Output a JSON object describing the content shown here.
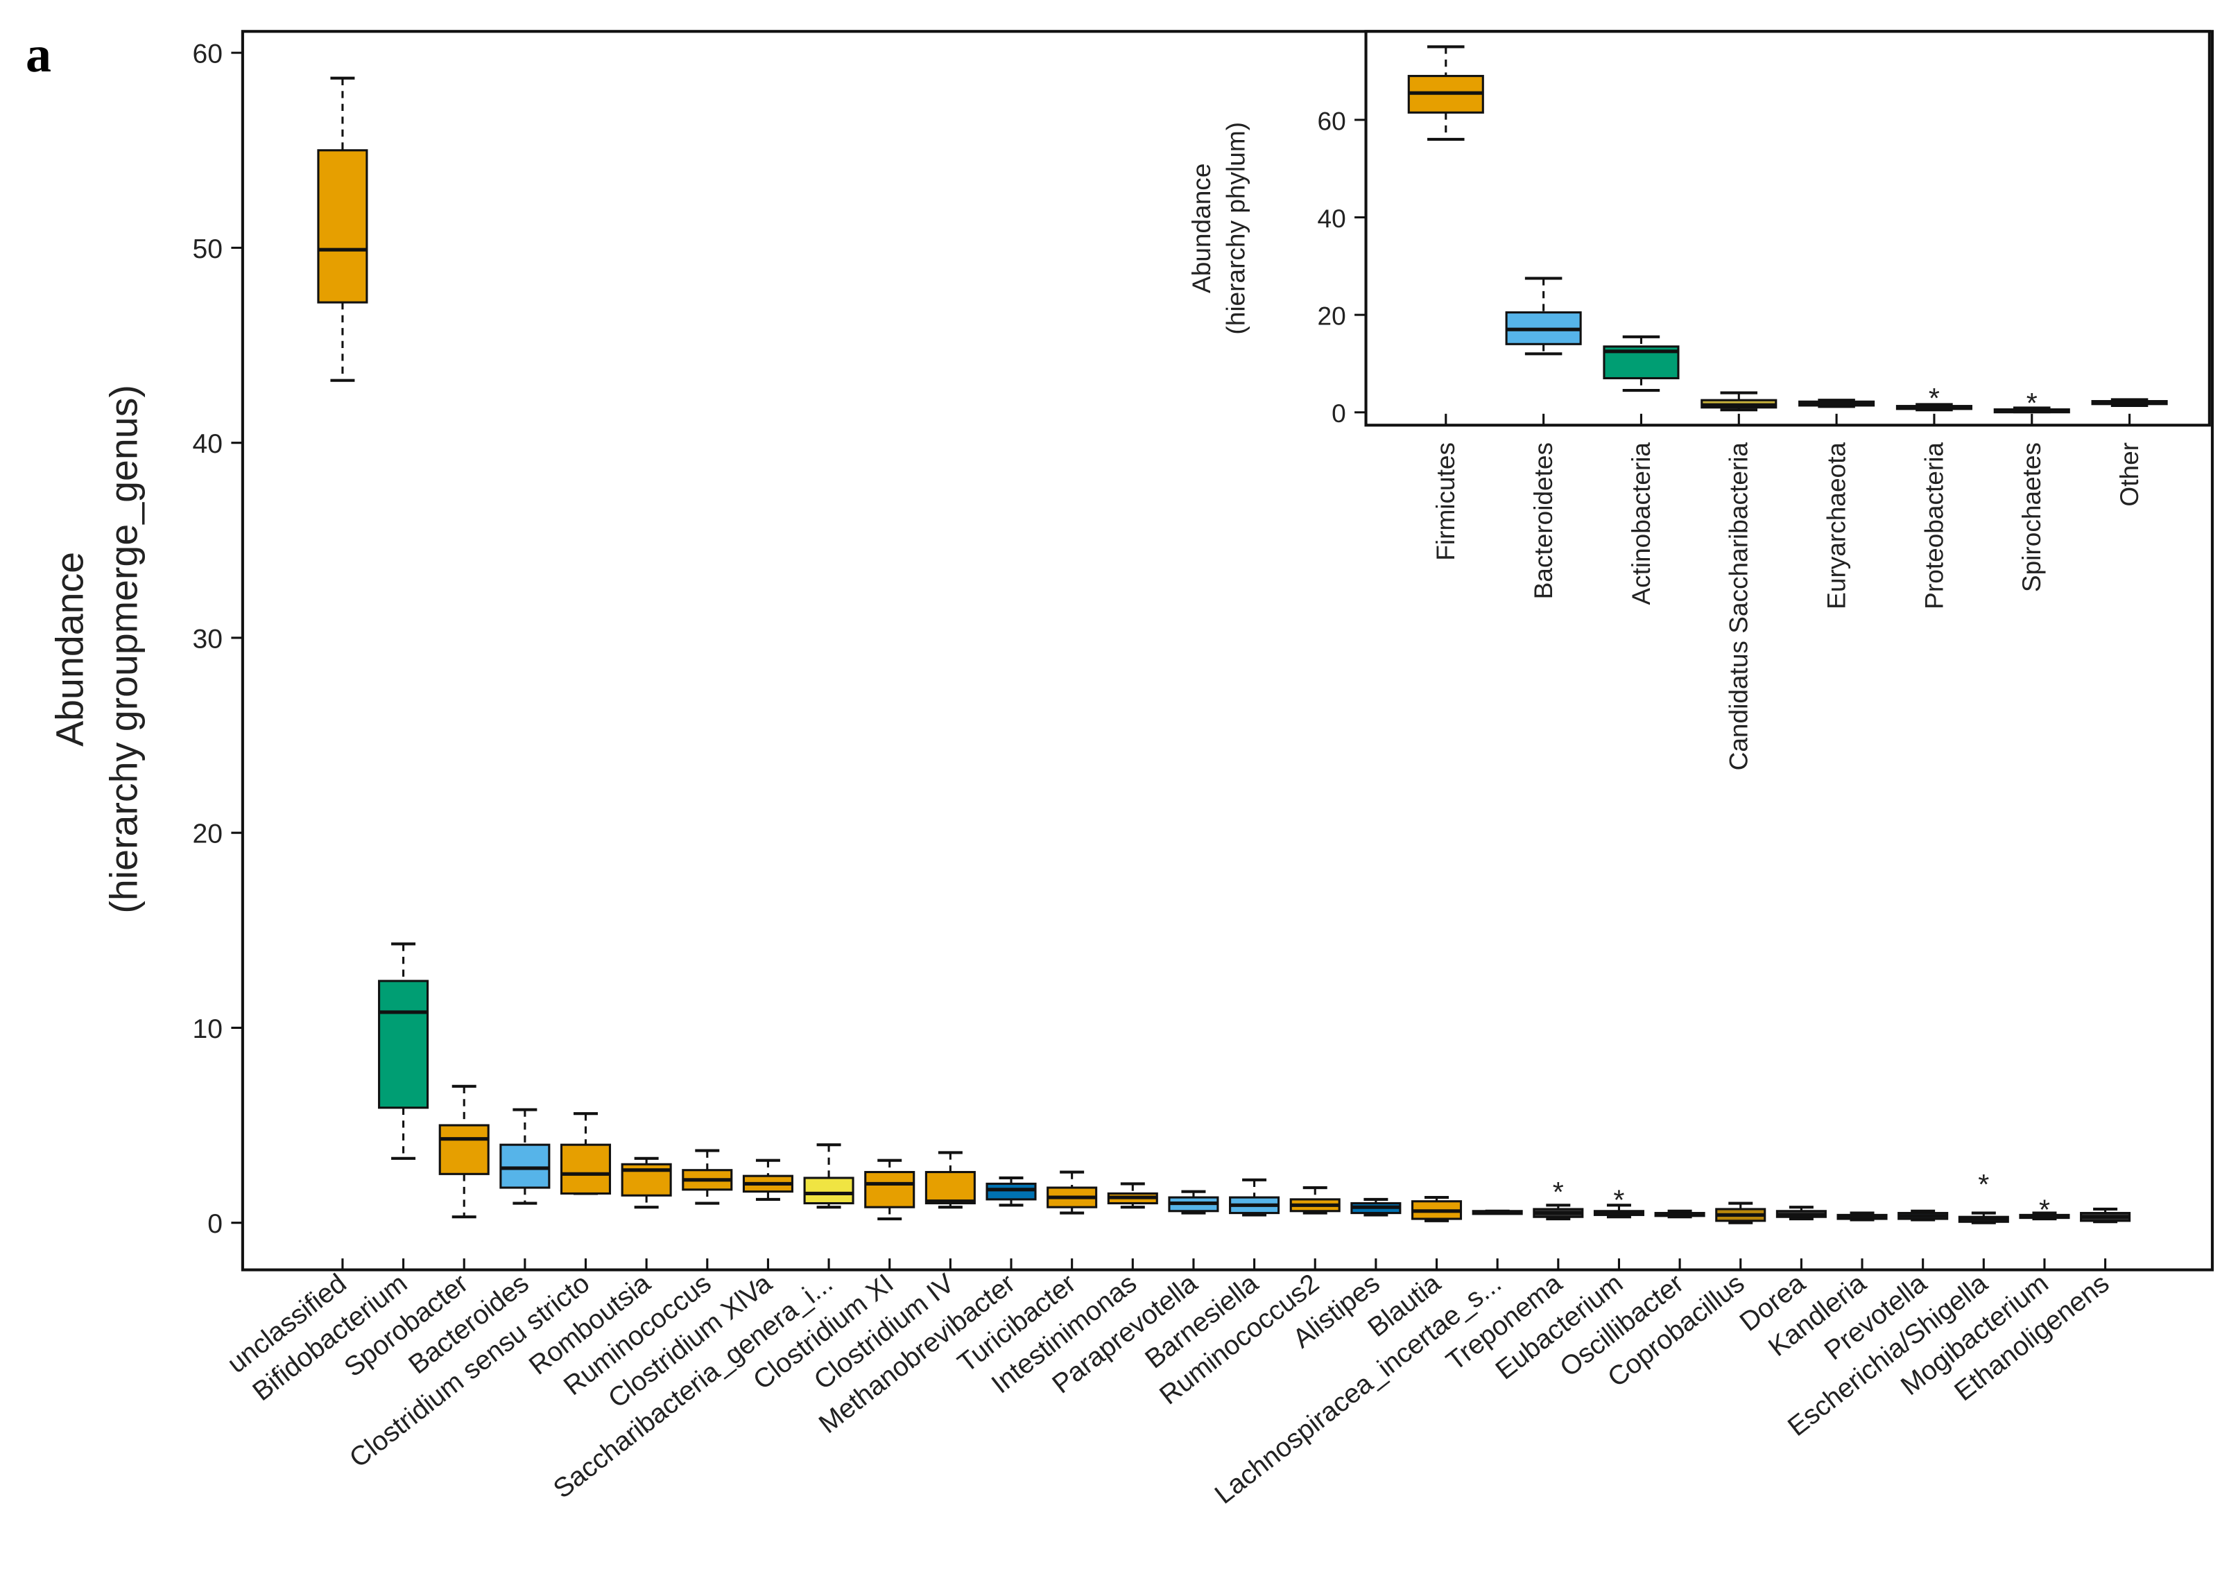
{
  "chart_data": [
    {
      "type": "box",
      "panel_label": "a",
      "ylabel": [
        "Abundance",
        "(hierarchy groupmerge_genus)"
      ],
      "ylim": [
        0,
        60
      ],
      "yticks": [
        0,
        10,
        20,
        30,
        40,
        50,
        60
      ],
      "categories": [
        "unclassified",
        "Bifidobacterium",
        "Sporobacter",
        "Bacteroides",
        "Clostridium sensu stricto",
        "Romboutsia",
        "Ruminococcus",
        "Clostridium XlVa",
        "Saccharibacteria_genera_i...",
        "Clostridium XI",
        "Clostridium IV",
        "Methanobrevibacter",
        "Turicibacter",
        "Intestinimonas",
        "Paraprevotella",
        "Barnesiella",
        "Ruminococcus2",
        "Alistipes",
        "Blautia",
        "Lachnospiracea_incertae_s...",
        "Treponema",
        "Eubacterium",
        "Oscillibacter",
        "Coprobacillus",
        "Dorea",
        "Kandleria",
        "Prevotella",
        "Escherichia/Shigella",
        "Mogibacterium",
        "Ethanoligenens"
      ],
      "boxes": [
        [
          43.2,
          47.2,
          49.9,
          55.0,
          58.7
        ],
        [
          3.3,
          5.9,
          10.8,
          12.4,
          14.3
        ],
        [
          0.3,
          2.5,
          4.3,
          5.0,
          7.0
        ],
        [
          1.0,
          1.8,
          2.8,
          4.0,
          5.8
        ],
        [
          1.5,
          1.5,
          2.5,
          4.0,
          5.6
        ],
        [
          0.8,
          1.4,
          2.7,
          3.0,
          3.3
        ],
        [
          1.0,
          1.7,
          2.2,
          2.7,
          3.7
        ],
        [
          1.2,
          1.6,
          2.0,
          2.4,
          3.2
        ],
        [
          0.8,
          1.0,
          1.5,
          2.3,
          4.0
        ],
        [
          0.2,
          0.8,
          2.0,
          2.6,
          3.2
        ],
        [
          0.8,
          1.0,
          1.1,
          2.6,
          3.6
        ],
        [
          0.9,
          1.2,
          1.7,
          2.0,
          2.3
        ],
        [
          0.5,
          0.8,
          1.3,
          1.8,
          2.6
        ],
        [
          0.8,
          1.0,
          1.3,
          1.5,
          2.0
        ],
        [
          0.5,
          0.6,
          1.0,
          1.3,
          1.6
        ],
        [
          0.4,
          0.5,
          0.9,
          1.3,
          2.2
        ],
        [
          0.5,
          0.6,
          0.9,
          1.2,
          1.8
        ],
        [
          0.4,
          0.5,
          0.8,
          1.0,
          1.2
        ],
        [
          0.1,
          0.2,
          0.6,
          1.1,
          1.3
        ],
        [
          0.5,
          0.5,
          0.55,
          0.6,
          0.6
        ],
        [
          0.2,
          0.3,
          0.5,
          0.7,
          0.9
        ],
        [
          0.3,
          0.4,
          0.5,
          0.6,
          0.9
        ],
        [
          0.3,
          0.35,
          0.45,
          0.5,
          0.6
        ],
        [
          0.0,
          0.1,
          0.4,
          0.7,
          1.0
        ],
        [
          0.2,
          0.3,
          0.4,
          0.6,
          0.8
        ],
        [
          0.15,
          0.2,
          0.3,
          0.4,
          0.5
        ],
        [
          0.15,
          0.2,
          0.35,
          0.5,
          0.6
        ],
        [
          0.0,
          0.05,
          0.2,
          0.3,
          0.5
        ],
        [
          0.2,
          0.25,
          0.3,
          0.4,
          0.5
        ],
        [
          0.05,
          0.1,
          0.3,
          0.5,
          0.7
        ]
      ],
      "outliers": [
        [],
        [],
        [],
        [],
        [],
        [],
        [],
        [],
        [],
        [],
        [],
        [],
        [],
        [],
        [],
        [],
        [],
        [],
        [],
        [],
        [
          1.6
        ],
        [
          1.2
        ],
        [],
        [],
        [],
        [],
        [],
        [
          2.0
        ],
        [
          0.7
        ],
        []
      ],
      "colors": [
        "#E69F00",
        "#009E73",
        "#E69F00",
        "#56B4E9",
        "#E69F00",
        "#E69F00",
        "#E69F00",
        "#E69F00",
        "#F0E442",
        "#E69F00",
        "#E69F00",
        "#0072B2",
        "#E69F00",
        "#E69F00",
        "#56B4E9",
        "#56B4E9",
        "#E69F00",
        "#0072B2",
        "#E69F00",
        "#333333",
        "#333333",
        "#333333",
        "#333333",
        "#B8860B",
        "#333333",
        "#333333",
        "#2F3F4F",
        "#333333",
        "#333333",
        "#333333"
      ]
    },
    {
      "type": "box",
      "ylabel": [
        "Abundance",
        "(hierarchy phylum)"
      ],
      "ylim": [
        0,
        75
      ],
      "yticks": [
        0,
        20,
        40,
        60
      ],
      "categories": [
        "Firmicutes",
        "Bacteroidetes",
        "Actinobacteria",
        "Candidatus Saccharibacteria",
        "Euryarchaeota",
        "Proteobacteria",
        "Spirochaetes",
        "Other"
      ],
      "boxes": [
        [
          56,
          61.5,
          65.5,
          69,
          75
        ],
        [
          12,
          14,
          17,
          20.5,
          27.5
        ],
        [
          4.5,
          7,
          12.5,
          13.5,
          15.5
        ],
        [
          0.5,
          1,
          1.5,
          2.5,
          4
        ],
        [
          1.2,
          1.4,
          1.8,
          2.2,
          2.5
        ],
        [
          0.5,
          0.7,
          1,
          1.3,
          1.6
        ],
        [
          0.1,
          0.2,
          0.4,
          0.6,
          0.9
        ],
        [
          1.4,
          1.7,
          2,
          2.3,
          2.6
        ]
      ],
      "outliers": [
        [],
        [],
        [],
        [],
        [],
        [
          3
        ],
        [
          2
        ],
        []
      ],
      "colors": [
        "#E69F00",
        "#56B4E9",
        "#009E73",
        "#C9B23A",
        "#333333",
        "#333333",
        "#333333",
        "#333333"
      ]
    }
  ]
}
